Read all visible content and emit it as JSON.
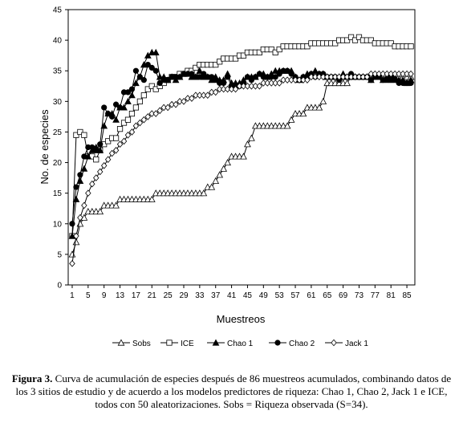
{
  "chart_data": {
    "type": "line",
    "y_label": "No. de especies",
    "x_label": "Muestreos",
    "xlim": [
      0,
      87
    ],
    "xticks": [
      1,
      5,
      9,
      13,
      17,
      21,
      25,
      29,
      33,
      37,
      41,
      45,
      49,
      53,
      57,
      61,
      65,
      69,
      73,
      77,
      81,
      85
    ],
    "ylim": [
      0,
      45
    ],
    "yticks": [
      0,
      5,
      10,
      15,
      20,
      25,
      30,
      35,
      40,
      45
    ],
    "x": [
      1,
      2,
      3,
      4,
      5,
      6,
      7,
      8,
      9,
      10,
      11,
      12,
      13,
      14,
      15,
      16,
      17,
      18,
      19,
      20,
      21,
      22,
      23,
      24,
      25,
      26,
      27,
      28,
      29,
      30,
      31,
      32,
      33,
      34,
      35,
      36,
      37,
      38,
      39,
      40,
      41,
      42,
      43,
      44,
      45,
      46,
      47,
      48,
      49,
      50,
      51,
      52,
      53,
      54,
      55,
      56,
      57,
      58,
      59,
      60,
      61,
      62,
      63,
      64,
      65,
      66,
      67,
      68,
      69,
      70,
      71,
      72,
      73,
      74,
      75,
      76,
      77,
      78,
      79,
      80,
      81,
      82,
      83,
      84,
      85,
      86
    ],
    "series": [
      {
        "name": "Sobs",
        "color": "#000000",
        "marker": "triangle-open",
        "values": [
          5,
          7,
          10,
          11,
          12,
          12,
          12,
          12,
          13,
          13,
          13,
          13,
          14,
          14,
          14,
          14,
          14,
          14,
          14,
          14,
          14,
          15,
          15,
          15,
          15,
          15,
          15,
          15,
          15,
          15,
          15,
          15,
          15,
          15,
          16,
          16,
          17,
          18,
          19,
          20,
          21,
          21,
          21,
          21,
          23,
          24,
          26,
          26,
          26,
          26,
          26,
          26,
          26,
          26,
          26,
          27,
          28,
          28,
          28,
          29,
          29,
          29,
          29,
          30,
          33,
          33,
          33,
          33,
          33,
          33,
          34,
          34,
          34,
          34,
          34,
          34,
          34,
          34,
          34,
          34,
          34,
          34,
          34,
          34,
          34,
          34
        ]
      },
      {
        "name": "ICE",
        "color": "#000000",
        "marker": "square-open",
        "values": [
          8,
          24.5,
          25,
          24.5,
          21,
          21,
          20.5,
          22,
          23,
          23.5,
          24,
          24,
          25.5,
          26.5,
          27,
          28,
          29,
          30,
          31,
          32,
          32.5,
          32,
          32.5,
          33,
          33.5,
          34,
          34,
          34.5,
          34.5,
          35,
          35,
          35.5,
          36,
          36,
          36,
          36,
          36,
          36.5,
          37,
          37,
          37,
          37,
          37.5,
          37.5,
          38,
          38,
          38,
          38,
          38.5,
          38.5,
          38.5,
          38,
          38.5,
          39,
          39,
          39,
          39,
          39,
          39,
          39,
          39.5,
          39.5,
          39.5,
          39.5,
          39.5,
          39.5,
          39.5,
          40,
          40,
          40,
          40.5,
          40,
          40.5,
          40,
          40,
          40,
          39.5,
          39.5,
          39.5,
          39.5,
          39.5,
          39,
          39,
          39,
          39,
          39
        ]
      },
      {
        "name": "Chao 1",
        "color": "#000000",
        "marker": "triangle-filled",
        "values": [
          8,
          14,
          17,
          19,
          21,
          22,
          22.5,
          22,
          26,
          28,
          28,
          27,
          29,
          29,
          30,
          31,
          33,
          34,
          36,
          37.5,
          38,
          38,
          34,
          34,
          33.5,
          34,
          33.5,
          34,
          34.5,
          34.5,
          34,
          34,
          35,
          34,
          34,
          33.5,
          34,
          33.5,
          33.5,
          34.5,
          33,
          33,
          33,
          33.5,
          34,
          34,
          34,
          34.5,
          34.5,
          34,
          34.5,
          35,
          35,
          35,
          35,
          35,
          34,
          33.5,
          34,
          34.5,
          34.5,
          35,
          34.5,
          34.5,
          34,
          34,
          34,
          34,
          34.5,
          34,
          34,
          34,
          34,
          34,
          34,
          33.5,
          34,
          34,
          33.5,
          34,
          33.5,
          34,
          33.5,
          33.5,
          33,
          33.5
        ]
      },
      {
        "name": "Chao 2",
        "color": "#000000",
        "marker": "circle-filled",
        "values": [
          10,
          16,
          18,
          21,
          22.5,
          22.5,
          22,
          23,
          29,
          28,
          27.5,
          29.5,
          29,
          31.5,
          31.5,
          32,
          35,
          34,
          33.5,
          36,
          35.5,
          35,
          33,
          33.5,
          33.5,
          34,
          34,
          34,
          34.5,
          34.5,
          34.5,
          34,
          34,
          34.5,
          34,
          34,
          33.5,
          33,
          33,
          34,
          32.5,
          32.5,
          32.5,
          33,
          34,
          33.5,
          34,
          34.5,
          34,
          34,
          34,
          34,
          34.5,
          35,
          35,
          34.5,
          34,
          33.5,
          34,
          34,
          34.5,
          34,
          34.5,
          34.5,
          34,
          34,
          34,
          33.5,
          34,
          34,
          34.5,
          34,
          34,
          34,
          34,
          33.5,
          34,
          34,
          33.5,
          33.5,
          34,
          33.5,
          33,
          33,
          33,
          33
        ]
      },
      {
        "name": "Jack 1",
        "color": "#000000",
        "marker": "diamond-open",
        "values": [
          3.5,
          8,
          11,
          13,
          15,
          16.5,
          17.5,
          18.5,
          19.5,
          20.5,
          21.5,
          22,
          23,
          23.5,
          24.5,
          25,
          26,
          26.5,
          27,
          27.5,
          28,
          28,
          28.5,
          29,
          29,
          29.5,
          29.5,
          30,
          30,
          30.5,
          30.5,
          31,
          31,
          31,
          31,
          31.5,
          31.5,
          32,
          32,
          32,
          32,
          32,
          32.5,
          32.5,
          32.5,
          32.5,
          32.5,
          32.5,
          33,
          33,
          33,
          33,
          33,
          33.5,
          33.5,
          33.5,
          33.5,
          33.5,
          33.5,
          33.5,
          34,
          34,
          34,
          34,
          34,
          34,
          34,
          34,
          34,
          34,
          34,
          34,
          34,
          34,
          34,
          34.5,
          34.5,
          34.5,
          34.5,
          34.5,
          34.5,
          34.5,
          34.5,
          34.5,
          34.5,
          34.5
        ]
      }
    ]
  },
  "caption": {
    "label": "Figura 3.",
    "text": "Curva de acumulación de especies después de 86 muestreos acumulados, combinando datos de los 3 sitios de estudio y de acuerdo a los modelos predictores de riqueza: Chao 1, Chao 2, Jack 1 e ICE, todos con 50 aleatorizaciones. Sobs = Riqueza observada (S=34)."
  }
}
